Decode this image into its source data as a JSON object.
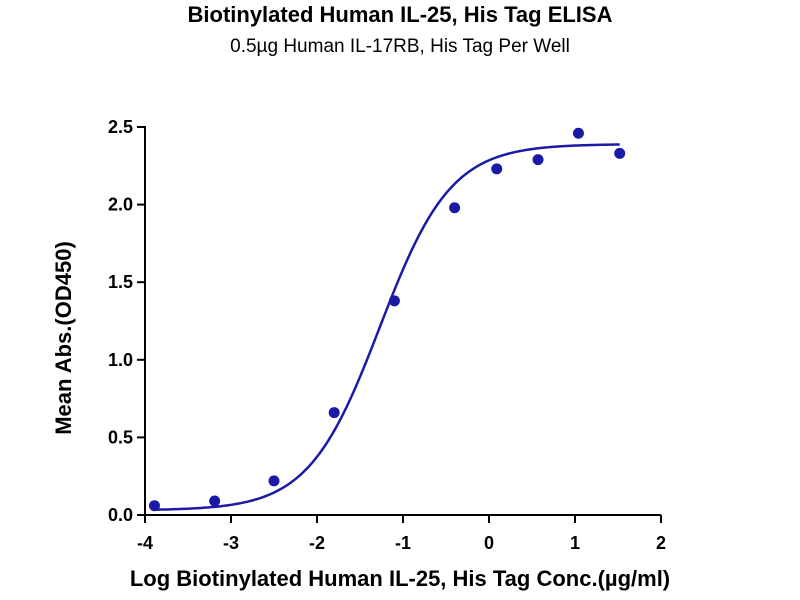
{
  "chart_data": {
    "type": "scatter",
    "title": "Biotinylated Human IL-25, His Tag ELISA",
    "subtitle": "0.5µg Human IL-17RB, His Tag Per Well",
    "xlabel": "Log Biotinylated Human IL-25, His Tag Conc.(µg/ml)",
    "ylabel": "Mean Abs.(OD450)",
    "xlim": [
      -4,
      2
    ],
    "ylim": [
      0,
      2.5
    ],
    "x_ticks": [
      "-4",
      "-3",
      "-2",
      "-1",
      "0",
      "1",
      "2"
    ],
    "y_ticks": [
      "0.0",
      "0.5",
      "1.0",
      "1.5",
      "2.0",
      "2.5"
    ],
    "grid": false,
    "legend": "none",
    "series": [
      {
        "points": [
          {
            "x": -3.89,
            "y": 0.06
          },
          {
            "x": -3.19,
            "y": 0.09
          },
          {
            "x": -2.5,
            "y": 0.22
          },
          {
            "x": -1.8,
            "y": 0.66
          },
          {
            "x": -1.1,
            "y": 1.38
          },
          {
            "x": -0.4,
            "y": 1.98
          },
          {
            "x": 0.09,
            "y": 2.23
          },
          {
            "x": 0.57,
            "y": 2.29
          },
          {
            "x": 1.04,
            "y": 2.46
          },
          {
            "x": 1.52,
            "y": 2.33
          }
        ],
        "fit": {
          "model": "4PL",
          "bottom": 0.03,
          "top": 2.39,
          "logEC50": -1.27,
          "hill": 1.05,
          "x_range": [
            -3.89,
            1.52
          ]
        },
        "color": "#1a1aa6"
      }
    ]
  }
}
